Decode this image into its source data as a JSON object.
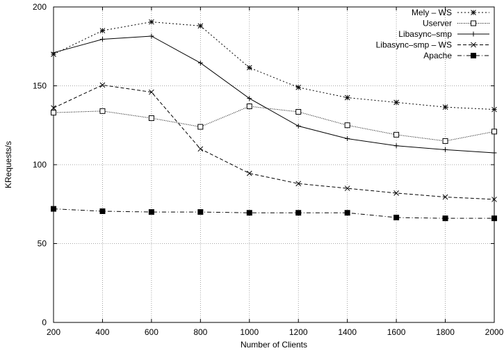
{
  "chart_data": {
    "type": "line",
    "title": "",
    "xlabel": "Number of Clients",
    "ylabel": "KRequests/s",
    "xlim": [
      200,
      2000
    ],
    "ylim": [
      0,
      200
    ],
    "x_ticks": [
      "200",
      "400",
      "600",
      "800",
      "1000",
      "1200",
      "1400",
      "1600",
      "1800",
      "2000"
    ],
    "y_ticks": [
      "0",
      "50",
      "100",
      "150",
      "200"
    ],
    "grid": true,
    "legend_position": "top-right",
    "x": [
      200,
      400,
      600,
      800,
      1000,
      1200,
      1400,
      1600,
      1800,
      2000
    ],
    "series": [
      {
        "name": "Mely – WS",
        "line_style": "dotted",
        "marker": "star",
        "values": [
          170,
          185,
          190.5,
          188,
          161.5,
          149,
          142.5,
          139.5,
          136.5,
          135
        ]
      },
      {
        "name": "Userver",
        "line_style": "fine-dotted",
        "marker": "open-square",
        "values": [
          133,
          134,
          129.5,
          124,
          137,
          133.5,
          125,
          119,
          115,
          121
        ]
      },
      {
        "name": "Libasync–smp",
        "line_style": "solid",
        "marker": "plus",
        "values": [
          171,
          179.5,
          181.5,
          164.5,
          142,
          124.5,
          116.5,
          112,
          109.5,
          107.5
        ]
      },
      {
        "name": "Libasync–smp – WS",
        "line_style": "dashed",
        "marker": "cross",
        "values": [
          136,
          150.5,
          146,
          110,
          94.5,
          88,
          85,
          82,
          79.5,
          78
        ]
      },
      {
        "name": "Apache",
        "line_style": "dash-dot",
        "marker": "filled-square",
        "values": [
          72,
          70.5,
          70,
          70,
          69.5,
          69.5,
          69.5,
          66.5,
          66,
          66
        ]
      }
    ]
  }
}
